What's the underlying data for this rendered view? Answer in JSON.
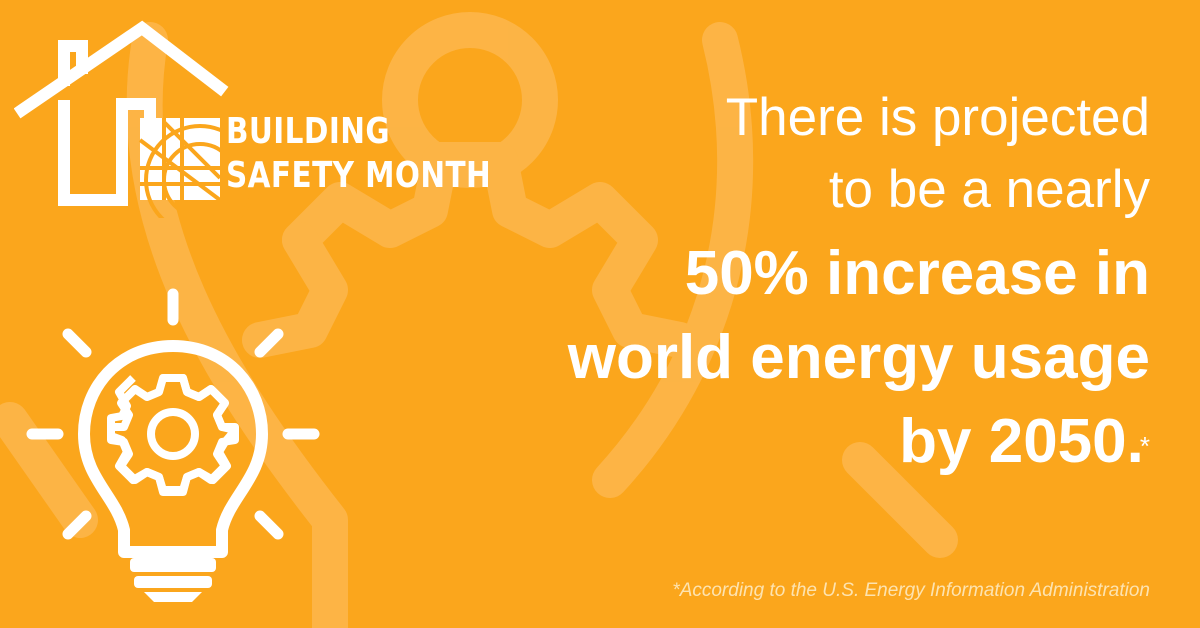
{
  "logo": {
    "line1": "BUILDING",
    "line2": "SAFETY MONTH",
    "icon": "house-globe-icon"
  },
  "headline": {
    "line1": "There is projected",
    "line2": "to be a nearly",
    "line3": "50% increase in",
    "line4": "world energy usage",
    "line5": "by 2050.",
    "asterisk": "*"
  },
  "footnote": "*According to the U.S. Energy Information Administration",
  "illustration": {
    "icon": "lightbulb-gear-icon",
    "watermark": "large-lightbulb-gear-watermark"
  },
  "colors": {
    "background": "#fba61c",
    "text": "#ffffff",
    "footnote": "#fde3b0"
  }
}
